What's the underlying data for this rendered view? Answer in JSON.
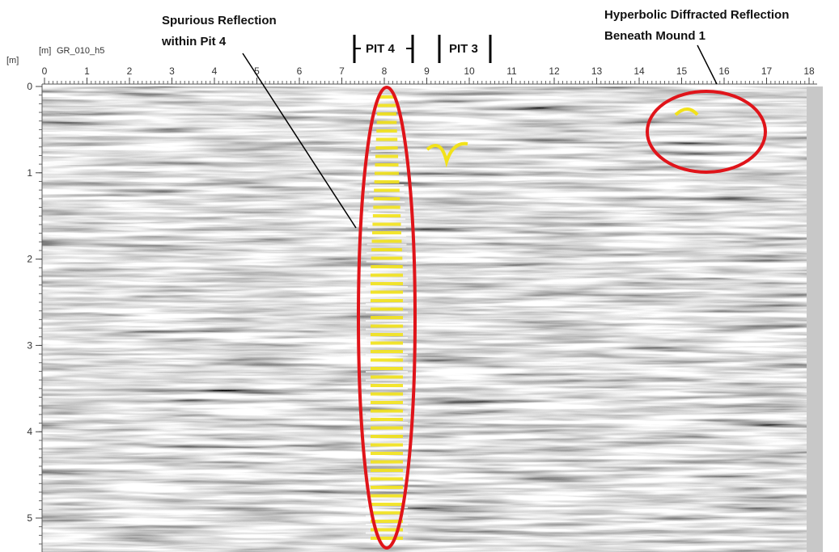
{
  "header": {
    "x_unit": "[m]",
    "y_unit": "[m]",
    "profile": "GR_010_h5"
  },
  "x_axis": {
    "ticks": [
      0,
      1,
      2,
      3,
      4,
      5,
      6,
      7,
      8,
      9,
      10,
      11,
      12,
      13,
      14,
      15,
      16,
      17,
      18
    ]
  },
  "y_axis": {
    "ticks": [
      0,
      1,
      2,
      3,
      4,
      5
    ]
  },
  "markers": [
    "PIT 4",
    "PIT 3"
  ],
  "annotations": [
    {
      "lines": [
        "Spurious Reflection",
        "within Pit 4"
      ]
    },
    {
      "lines": [
        "Hyperbolic Diffracted Reflection",
        "Beneath Mound 1"
      ]
    }
  ]
}
